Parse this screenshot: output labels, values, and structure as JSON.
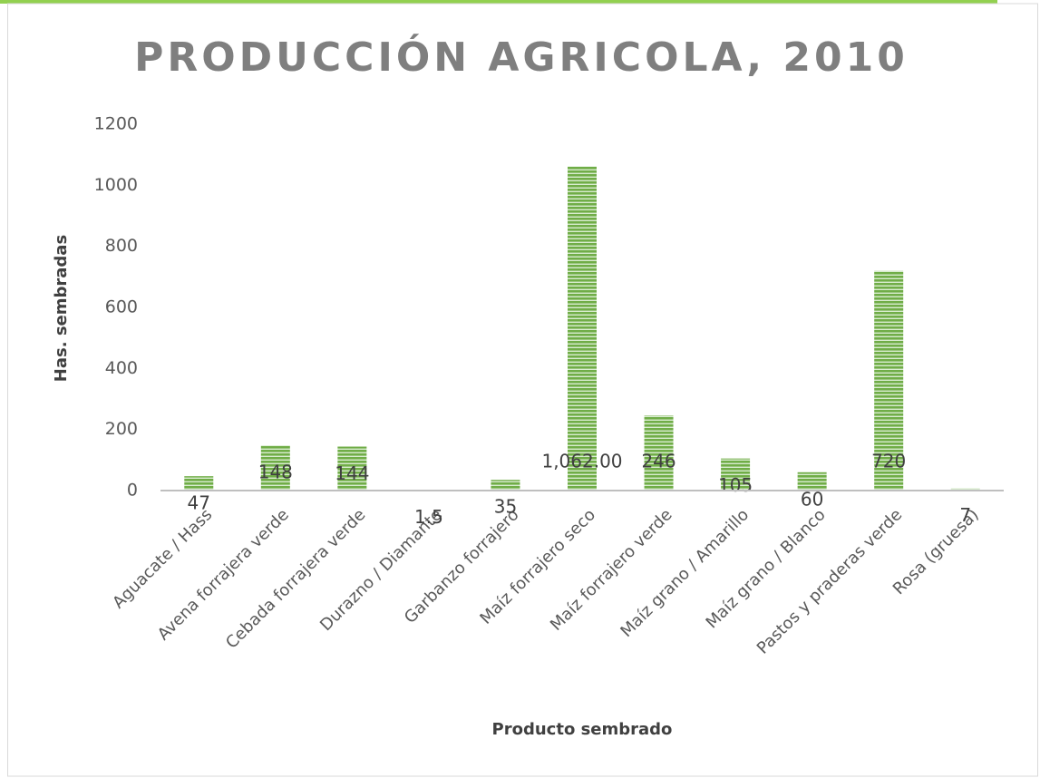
{
  "chart_data": {
    "type": "bar",
    "title": "PRODUCCIÓN AGRICOLA, 2010",
    "x_label": "Producto sembrado",
    "y_label": "Has. sembradas",
    "categories": [
      "Aguacate / Hass",
      "Avena forrajera verde",
      "Cebada forrajera verde",
      "Durazno / Diamante",
      "Garbanzo forrajero",
      "Maíz forrajero seco",
      "Maíz forrajero verde",
      "Maíz grano / Amarillo",
      "Maíz grano / Blanco",
      "Pastos y praderas verde",
      "Rosa (gruesa)"
    ],
    "values": [
      47,
      148,
      144,
      1.5,
      35,
      1062,
      246,
      105,
      60,
      720,
      7
    ],
    "value_labels": [
      "47",
      "148",
      "144",
      "1.5",
      "35",
      "1,062.00",
      "246",
      "105",
      "60",
      "720",
      "7"
    ],
    "color": "#70ad47",
    "ylim": [
      0,
      1200
    ],
    "yticks": [
      0,
      200,
      400,
      600,
      800,
      1000,
      1200
    ],
    "grid": false
  }
}
